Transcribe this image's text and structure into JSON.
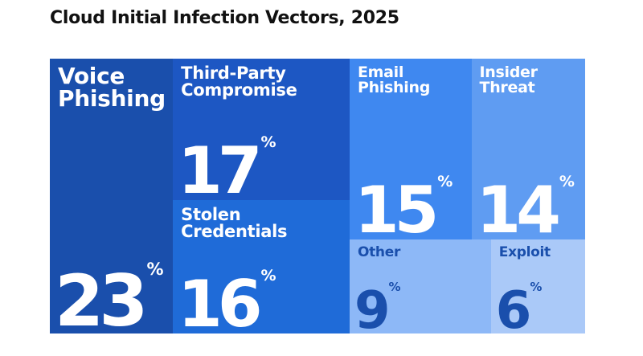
{
  "title": "Cloud Initial Infection Vectors, 2025",
  "chart_data": {
    "type": "treemap",
    "title": "Cloud Initial Infection Vectors, 2025",
    "unit": "%",
    "items": [
      {
        "label": "Voice Phishing",
        "value": 23,
        "color": "#1a4fac",
        "text_color": "#ffffff"
      },
      {
        "label": "Third-Party Compromise",
        "value": 17,
        "color": "#1d57c3",
        "text_color": "#ffffff"
      },
      {
        "label": "Stolen Credentials",
        "value": 16,
        "color": "#1f6bd8",
        "text_color": "#ffffff"
      },
      {
        "label": "Email Phishing",
        "value": 15,
        "color": "#3f88f0",
        "text_color": "#ffffff"
      },
      {
        "label": "Insider Threat",
        "value": 14,
        "color": "#5f9cf2",
        "text_color": "#ffffff"
      },
      {
        "label": "Other",
        "value": 9,
        "color": "#8db8f7",
        "text_color": "#1a4fac"
      },
      {
        "label": "Exploit",
        "value": 6,
        "color": "#aac9f8",
        "text_color": "#1a4fac"
      }
    ]
  }
}
